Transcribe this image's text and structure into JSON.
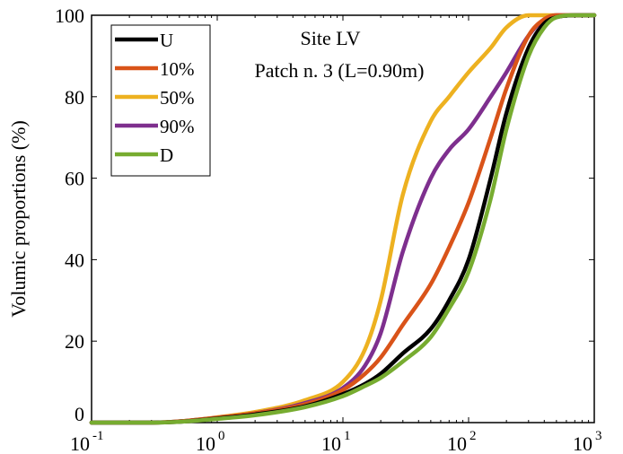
{
  "chart_data": {
    "type": "line",
    "title": "Site LV",
    "subtitle": "Patch n. 3 (L=0.90m)",
    "xlabel": "",
    "ylabel": "Volumic proportions (%)",
    "xscale": "log",
    "xlim": [
      0.1,
      1000
    ],
    "ylim": [
      0,
      100
    ],
    "x_ticks": [
      {
        "base": "10",
        "exp": "-1"
      },
      {
        "base": "10",
        "exp": "0"
      },
      {
        "base": "10",
        "exp": "1"
      },
      {
        "base": "10",
        "exp": "2"
      },
      {
        "base": "10",
        "exp": "3"
      }
    ],
    "y_ticks": [
      "0",
      "20",
      "40",
      "60",
      "80",
      "100"
    ],
    "grid": false,
    "legend_position": "top-left",
    "x": [
      0.1,
      0.3,
      0.5,
      1,
      2,
      5,
      10,
      15,
      20,
      30,
      50,
      70,
      100,
      150,
      200,
      300,
      400,
      500,
      700,
      1000
    ],
    "series": [
      {
        "name": "U",
        "color": "#000000",
        "values": [
          0,
          0,
          0.2,
          1.0,
          2.0,
          4.0,
          7.0,
          9.5,
          12.0,
          17.0,
          23.0,
          30.0,
          40.0,
          60.0,
          76.0,
          92.0,
          98.0,
          99.5,
          100,
          100
        ]
      },
      {
        "name": "10%",
        "color": "#D95319",
        "values": [
          0,
          0,
          0.3,
          1.2,
          2.3,
          4.5,
          8.0,
          12.0,
          16.0,
          24.0,
          34.0,
          43.0,
          54.0,
          70.0,
          82.0,
          95.0,
          99.0,
          100,
          100,
          100
        ]
      },
      {
        "name": "50%",
        "color": "#EDB120",
        "values": [
          0,
          0,
          0.3,
          1.3,
          2.6,
          5.5,
          10.0,
          18.0,
          30.0,
          56.0,
          74.0,
          80.0,
          86.0,
          92.0,
          97.0,
          100,
          100,
          100,
          100,
          100
        ]
      },
      {
        "name": "90%",
        "color": "#7E2F8E",
        "values": [
          0,
          0,
          0.3,
          1.2,
          2.3,
          4.8,
          8.5,
          14.0,
          22.0,
          42.0,
          60.0,
          67.0,
          72.0,
          80.0,
          86.0,
          95.0,
          99.0,
          100,
          100,
          100
        ]
      },
      {
        "name": "D",
        "color": "#77AC30",
        "values": [
          0,
          0,
          0.2,
          0.9,
          1.8,
          3.8,
          6.5,
          9.0,
          11.0,
          15.0,
          21.0,
          28.0,
          37.0,
          55.0,
          72.0,
          90.0,
          97.0,
          99.5,
          100,
          100
        ]
      }
    ]
  }
}
